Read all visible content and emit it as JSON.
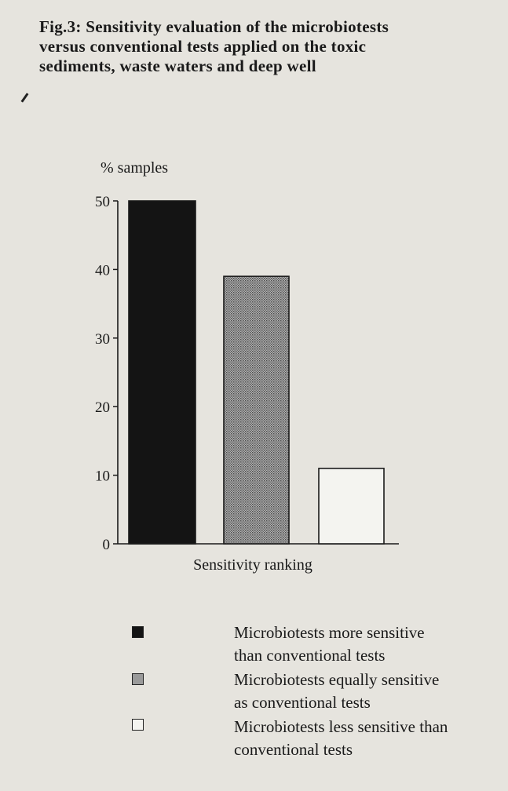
{
  "figure": {
    "caption_lines": [
      "Fig.3: Sensitivity evaluation of the microbiotests",
      "versus conventional tests applied on the toxic",
      "sediments, waste waters and deep well"
    ]
  },
  "chart_data": {
    "type": "bar",
    "ylabel": "% samples",
    "xlabel": "Sensitivity ranking",
    "ylim": [
      0,
      50
    ],
    "yticks": [
      0,
      10,
      20,
      30,
      40,
      50
    ],
    "categories": [
      "Microbiotests more sensitive than conventional tests",
      "Microbiotests equally sensitive as conventional tests",
      "Microbiotests less sensitive than conventional tests"
    ],
    "values": [
      50,
      39,
      11
    ],
    "grid": false,
    "legend_position": "bottom",
    "colors": [
      "#141414",
      "#9a9a9a",
      "#f4f4f0"
    ],
    "fills": [
      "solid",
      "stippled",
      "empty"
    ]
  },
  "legend": [
    {
      "lines": [
        "Microbiotests  more sensitive",
        "than conventional tests"
      ]
    },
    {
      "lines": [
        "Microbiotests equally sensitive",
        "as  conventional tests"
      ]
    },
    {
      "lines": [
        "Microbiotests less sensitive than",
        "conventional tests"
      ]
    }
  ]
}
